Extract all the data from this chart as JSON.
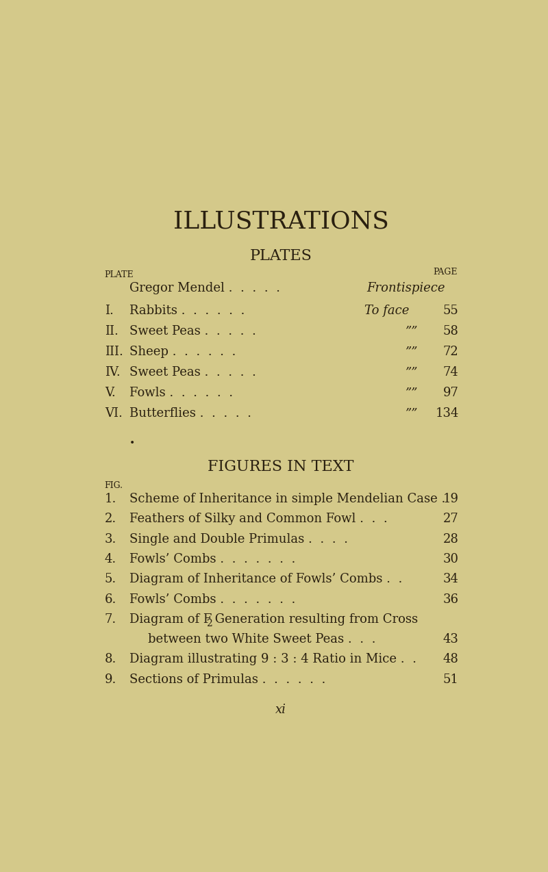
{
  "bg_color": "#d4c98a",
  "text_color": "#2a2010",
  "title": "ILLUSTRATIONS",
  "subtitle": "PLATES",
  "section2_title": "FIGURES IN TEXT",
  "plate_label": "PLATE",
  "page_label": "PAGE",
  "fig_label": "FIG.",
  "footer": "xi",
  "title_fontsize": 26,
  "subtitle_fontsize": 16,
  "label_fontsize": 9,
  "plate_title_fontsize": 13,
  "fig_title_fontsize": 13
}
